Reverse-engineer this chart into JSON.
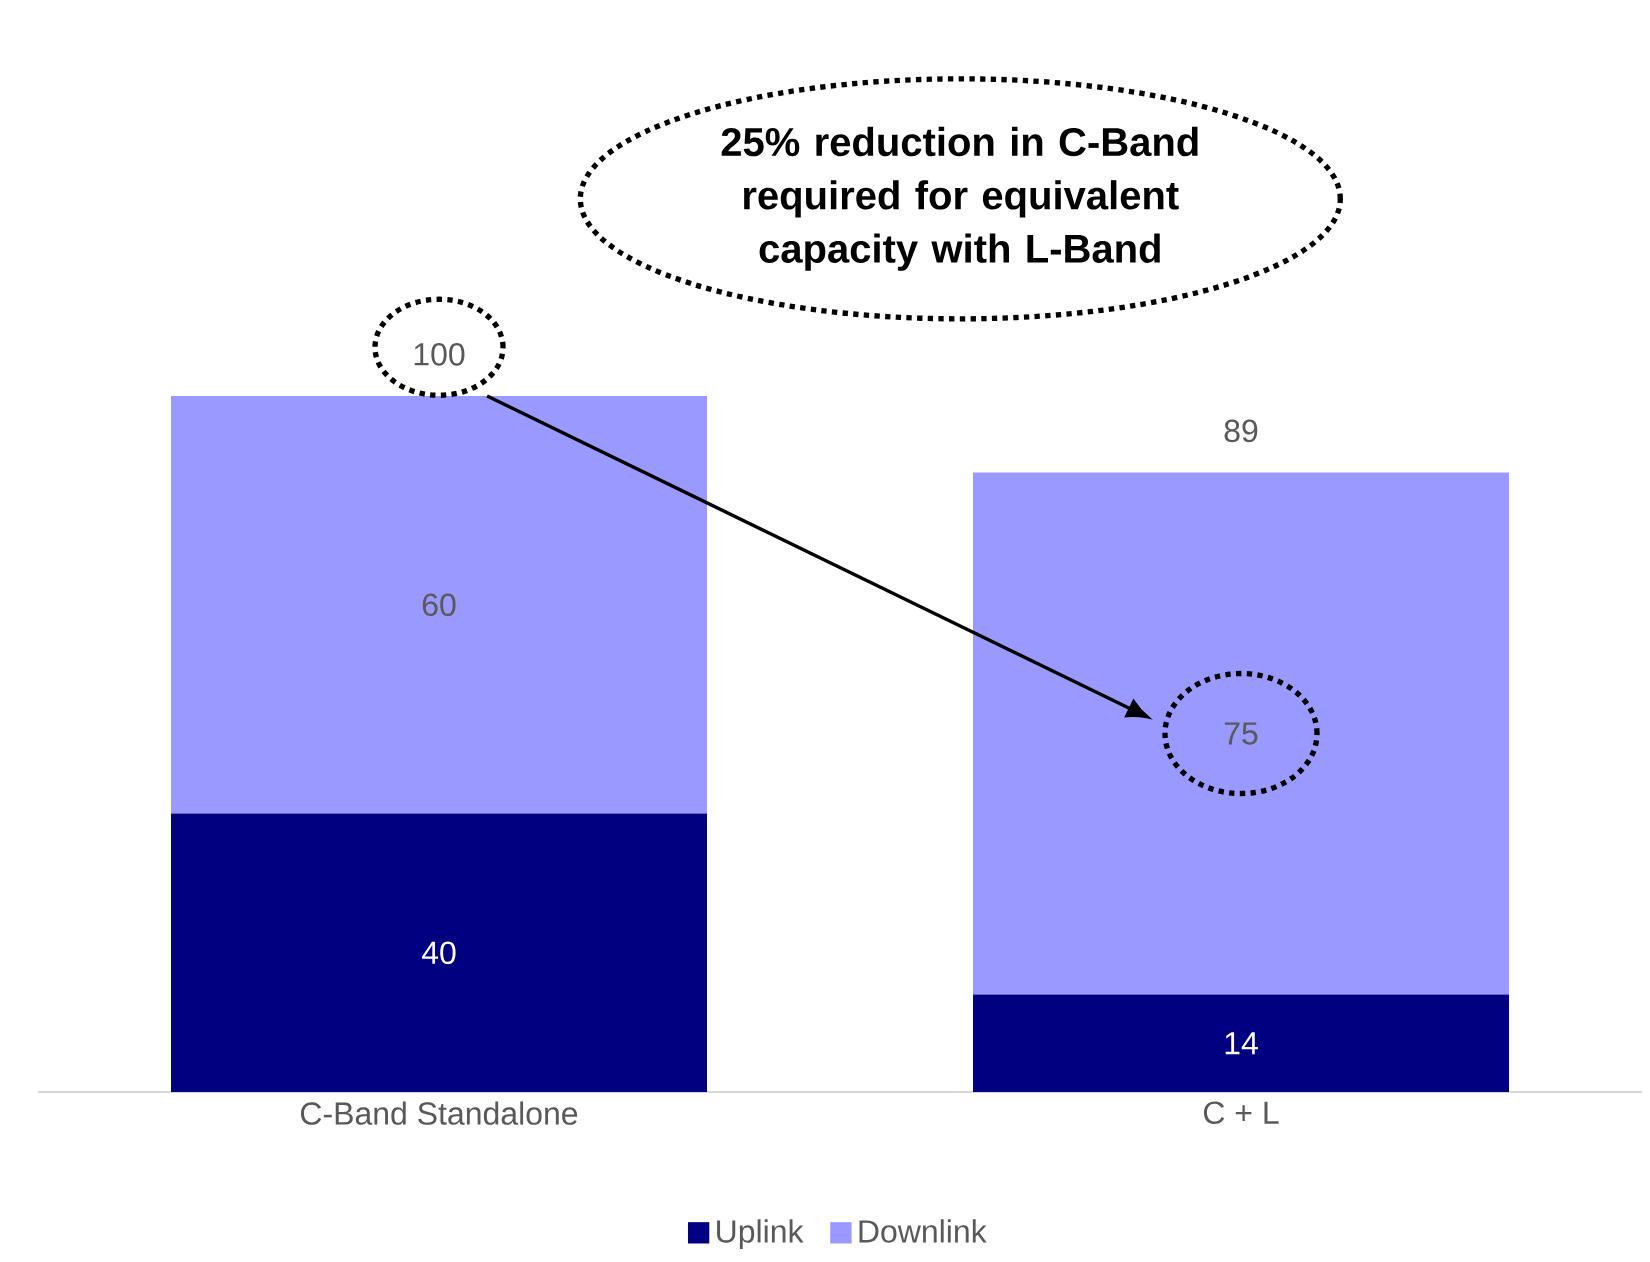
{
  "chart_data": {
    "type": "bar",
    "stacked": true,
    "categories": [
      "C-Band Standalone",
      "C + L"
    ],
    "series": [
      {
        "name": "Uplink",
        "color": "#000080",
        "values": [
          40,
          14
        ],
        "value_labels": [
          "40",
          "14"
        ]
      },
      {
        "name": "Downlink",
        "color": "#9999ff",
        "values": [
          60,
          75
        ],
        "value_labels": [
          "60",
          "75"
        ]
      }
    ],
    "totals": [
      "100",
      "89"
    ],
    "legend": "bottom",
    "annotations": [
      "25% reduction in C-Band required for equivalent capacity with L-Band"
    ]
  }
}
